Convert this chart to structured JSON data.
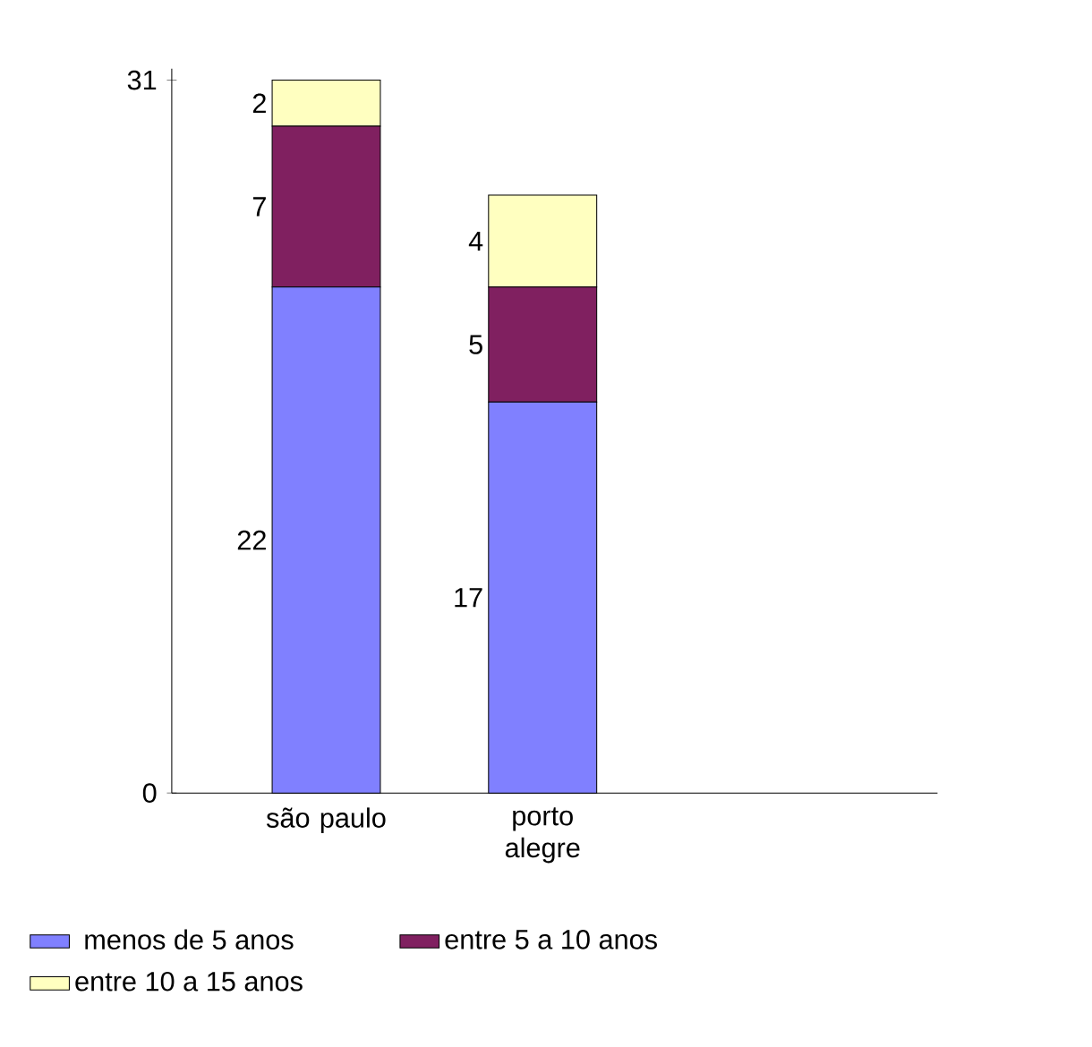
{
  "chart_data": {
    "type": "bar",
    "stacked": true,
    "categories": [
      "são paulo",
      "porto alegre"
    ],
    "series": [
      {
        "name": "menos de 5 anos",
        "color": "#8080ff",
        "values": [
          22,
          17
        ]
      },
      {
        "name": "entre 5 a 10 anos",
        "color": "#802060",
        "values": [
          7,
          5
        ]
      },
      {
        "name": "entre 10 a 15 anos",
        "color": "#ffffc0",
        "values": [
          2,
          4
        ]
      }
    ],
    "ylim": [
      0,
      31.5
    ],
    "yticks": [
      0,
      31
    ],
    "data_labels": true,
    "legend": "bottom",
    "grid": false
  }
}
